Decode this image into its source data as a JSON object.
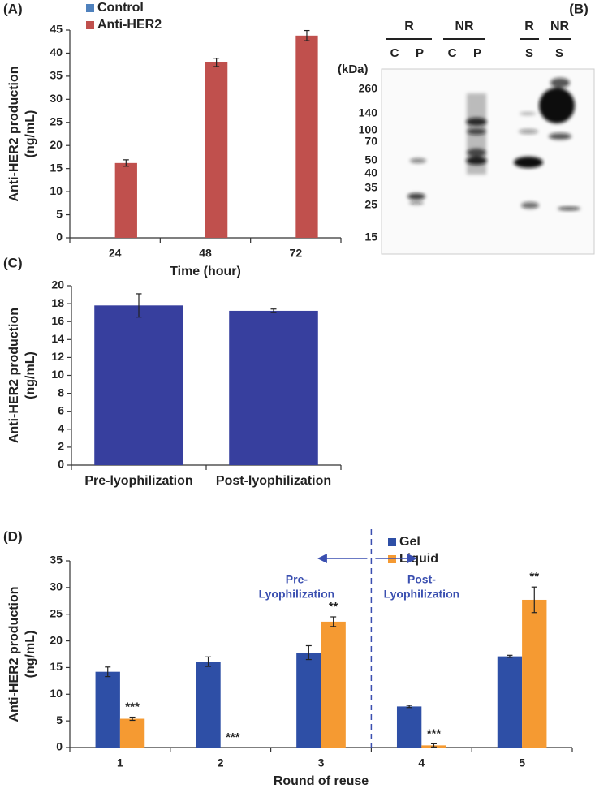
{
  "chart_data": [
    {
      "type": "bar",
      "label": "(A)",
      "ylabel": [
        "Anti-HER2 production",
        "(ng/mL)"
      ],
      "xlabel": "Time (hour)",
      "categories": [
        "24",
        "48",
        "72"
      ],
      "series": [
        {
          "name": "Control",
          "color": "#4f81bd",
          "values": [
            null,
            null,
            null
          ]
        },
        {
          "name": "Anti-HER2",
          "color": "#c0504d",
          "values": [
            16.2,
            38.0,
            43.8
          ],
          "errors": [
            0.7,
            0.9,
            1.1
          ]
        }
      ],
      "ylim": [
        0,
        45
      ],
      "yticks": [
        0,
        5,
        10,
        15,
        20,
        25,
        30,
        35,
        40,
        45
      ],
      "legend": "upper left"
    },
    {
      "type": "bar",
      "label": "(C)",
      "ylabel": [
        "Anti-HER2 production",
        "(ng/mL)"
      ],
      "categories": [
        "Pre-lyophilization",
        "Post-lyophilization"
      ],
      "values": [
        17.8,
        17.2
      ],
      "errors": [
        1.3,
        0.2
      ],
      "color": "#373f9e",
      "ylim": [
        0,
        20
      ],
      "yticks": [
        0,
        2,
        4,
        6,
        8,
        10,
        12,
        14,
        16,
        18,
        20
      ]
    },
    {
      "type": "bar",
      "label": "(D)",
      "ylabel": [
        "Anti-HER2 production",
        "(ng/mL)"
      ],
      "xlabel": "Round of reuse",
      "categories": [
        "1",
        "2",
        "3",
        "4",
        "5"
      ],
      "series": [
        {
          "name": "Gel",
          "color": "#2e4fa6",
          "values": [
            14.2,
            16.1,
            17.8,
            7.7,
            17.1
          ],
          "errors": [
            0.9,
            0.9,
            1.3,
            0.2,
            0.2
          ]
        },
        {
          "name": "Liquid",
          "color": "#f59a32",
          "values": [
            5.4,
            0,
            23.6,
            0.4,
            27.7
          ],
          "errors": [
            0.3,
            null,
            0.9,
            0.3,
            2.4
          ],
          "significance": [
            "***",
            "***",
            "**",
            "***",
            "**"
          ]
        }
      ],
      "ylim": [
        0,
        35
      ],
      "yticks": [
        0,
        5,
        10,
        15,
        20,
        25,
        30,
        35
      ],
      "legend": "upper right",
      "annotations": [
        [
          "Pre-",
          "Lyophilization"
        ],
        [
          "Post-",
          "Lyophilization"
        ]
      ]
    }
  ],
  "blot": {
    "label": "(B)",
    "groups": [
      "R",
      "NR",
      "R",
      "NR"
    ],
    "lanes": [
      "C",
      "P",
      "C",
      "P",
      "S",
      "S"
    ],
    "unit": "(kDa)",
    "markers": [
      260,
      140,
      100,
      70,
      50,
      40,
      35,
      25,
      15
    ]
  }
}
